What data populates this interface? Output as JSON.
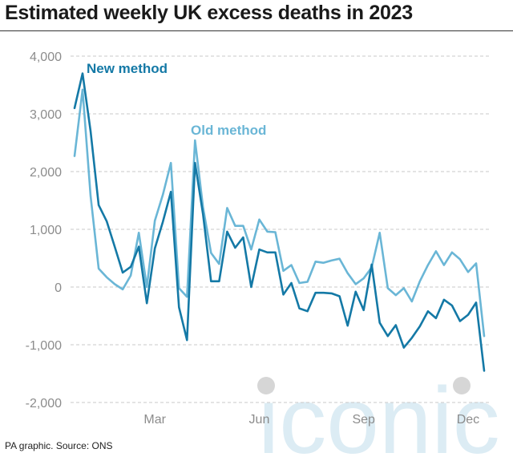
{
  "title": "Estimated weekly UK excess deaths in 2023",
  "footer": "PA graphic. Source: ONS",
  "watermark": "iconic",
  "colors": {
    "new_method": "#1479a6",
    "old_method": "#6ab6d6",
    "grid": "#c9c9c9",
    "tick_text": "#8c8c8c",
    "watermark": "#dcecf4"
  },
  "chart_data": {
    "type": "line",
    "title": "Estimated weekly UK excess deaths in 2023",
    "xlabel": "",
    "ylabel": "",
    "x": [
      1,
      2,
      3,
      4,
      5,
      6,
      7,
      8,
      9,
      10,
      11,
      12,
      13,
      14,
      15,
      16,
      17,
      18,
      19,
      20,
      21,
      22,
      23,
      24,
      25,
      26,
      27,
      28,
      29,
      30,
      31,
      32,
      33,
      34,
      35,
      36,
      37,
      38,
      39,
      40,
      41,
      42,
      43,
      44,
      45,
      46,
      47,
      48,
      49,
      50,
      51,
      52
    ],
    "x_ticks": [
      {
        "label": "Mar",
        "week": 11
      },
      {
        "label": "Jun",
        "week": 24
      },
      {
        "label": "Sep",
        "week": 37
      },
      {
        "label": "Dec",
        "week": 50
      }
    ],
    "ylim": [
      -2000,
      4000
    ],
    "y_ticks": [
      4000,
      3000,
      2000,
      1000,
      0,
      -1000,
      -2000
    ],
    "y_tick_labels": [
      "4,000",
      "3,000",
      "2,000",
      "1,000",
      "0",
      "-1,000",
      "-2,000"
    ],
    "grid": "horizontal dashed",
    "series": [
      {
        "name": "New method",
        "values": [
          3100,
          3700,
          2700,
          1420,
          1140,
          700,
          250,
          350,
          700,
          -280,
          670,
          1130,
          1650,
          -350,
          -920,
          2150,
          1260,
          100,
          100,
          960,
          680,
          860,
          0,
          650,
          600,
          600,
          -130,
          70,
          -370,
          -420,
          -100,
          -100,
          -110,
          -160,
          -670,
          -80,
          -400,
          390,
          -620,
          -850,
          -660,
          -1050,
          -880,
          -680,
          -420,
          -540,
          -220,
          -320,
          -590,
          -480,
          -270,
          -1450
        ]
      },
      {
        "name": "Old method",
        "values": [
          2270,
          3420,
          1580,
          320,
          170,
          50,
          -40,
          200,
          940,
          0,
          1150,
          1600,
          2150,
          -20,
          -170,
          2540,
          1380,
          590,
          400,
          1370,
          1060,
          1060,
          650,
          1170,
          960,
          950,
          280,
          380,
          70,
          90,
          440,
          420,
          460,
          490,
          240,
          50,
          150,
          340,
          940,
          -20,
          -140,
          -20,
          -250,
          100,
          380,
          620,
          380,
          600,
          480,
          260,
          410,
          -850
        ]
      }
    ],
    "annotations": [
      {
        "text": "New method",
        "series": "New method"
      },
      {
        "text": "Old method",
        "series": "Old method"
      }
    ]
  }
}
